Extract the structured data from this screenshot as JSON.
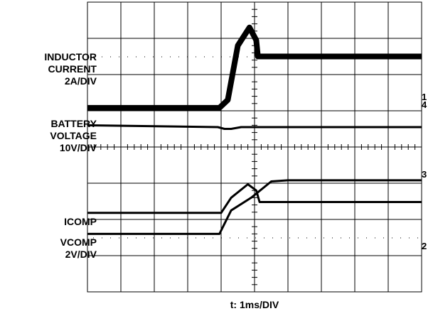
{
  "labels": {
    "inductor_current": [
      "INDUCTOR",
      "CURRENT",
      "2A/DIV"
    ],
    "battery_voltage": [
      "BATTERY",
      "VOLTAGE",
      "10V/DIV"
    ],
    "icomp": "ICOMP",
    "vcomp": [
      "VCOMP",
      "2V/DIV"
    ],
    "time_axis": "t: 1ms/DIV"
  },
  "channel_markers": {
    "ch1": "1",
    "ch2": "2",
    "ch3": "3",
    "ch4": "4"
  },
  "chart_data": {
    "type": "line",
    "xlabel": "t: 1ms/DIV",
    "grid": true,
    "x_divisions": 10,
    "y_divisions": 8,
    "xlim": [
      0,
      10
    ],
    "ylim": [
      0,
      8
    ],
    "series": [
      {
        "name": "INDUCTOR CURRENT 2A/DIV",
        "style": "thick-noisy",
        "points": [
          [
            0,
            5.08
          ],
          [
            3.95,
            5.08
          ],
          [
            4.2,
            5.3
          ],
          [
            4.5,
            6.8
          ],
          [
            4.85,
            7.3
          ],
          [
            5.05,
            6.95
          ],
          [
            5.1,
            6.5
          ],
          [
            10,
            6.5
          ]
        ]
      },
      {
        "name": "BATTERY VOLTAGE 10V/DIV",
        "style": "thin",
        "points": [
          [
            0,
            4.6
          ],
          [
            3.9,
            4.55
          ],
          [
            4.1,
            4.5
          ],
          [
            4.3,
            4.5
          ],
          [
            4.6,
            4.55
          ],
          [
            5.0,
            4.55
          ],
          [
            10,
            4.55
          ]
        ]
      },
      {
        "name": "ICOMP",
        "style": "thin",
        "points": [
          [
            0,
            2.18
          ],
          [
            4.0,
            2.18
          ],
          [
            4.3,
            2.6
          ],
          [
            4.8,
            2.97
          ],
          [
            5.05,
            2.8
          ],
          [
            5.15,
            2.48
          ],
          [
            10,
            2.48
          ]
        ]
      },
      {
        "name": "VCOMP 2V/DIV",
        "style": "thin",
        "points": [
          [
            0,
            1.6
          ],
          [
            3.95,
            1.6
          ],
          [
            4.3,
            2.25
          ],
          [
            4.9,
            2.6
          ],
          [
            5.5,
            3.05
          ],
          [
            6.0,
            3.08
          ],
          [
            10,
            3.08
          ]
        ]
      }
    ]
  }
}
